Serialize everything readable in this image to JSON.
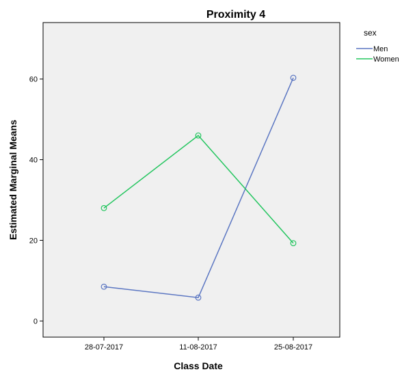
{
  "chart_data": {
    "type": "line",
    "title": "Proximity 4",
    "xlabel": "Class Date",
    "ylabel": "Estimated Marginal Means",
    "categories": [
      "28-07-2017",
      "11-08-2017",
      "25-08-2017"
    ],
    "ylim": [
      -4,
      74
    ],
    "yticks": [
      0,
      20,
      40,
      60
    ],
    "grid": false,
    "legend": {
      "title": "sex",
      "position": "top-right"
    },
    "series": [
      {
        "name": "Men",
        "color": "#5b76c2",
        "values": [
          8.5,
          5.8,
          60.3
        ]
      },
      {
        "name": "Women",
        "color": "#22c55e",
        "values": [
          28,
          46,
          19.3
        ]
      }
    ]
  }
}
